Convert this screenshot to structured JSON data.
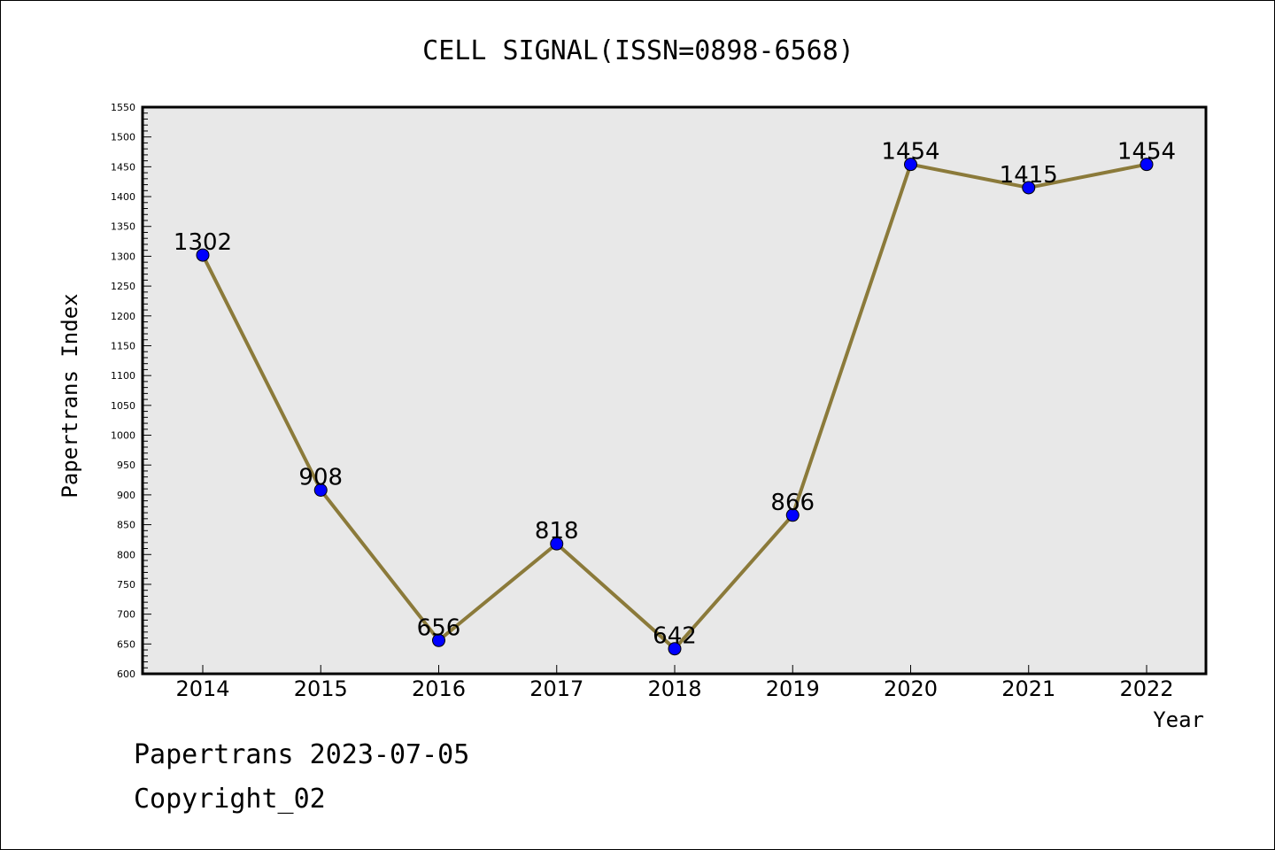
{
  "chart_data": {
    "type": "line",
    "title": "CELL SIGNAL(ISSN=0898-6568)",
    "xlabel": "Year",
    "ylabel": "Papertrans Index",
    "categories": [
      "2014",
      "2015",
      "2016",
      "2017",
      "2018",
      "2019",
      "2020",
      "2021",
      "2022"
    ],
    "series": [
      {
        "values": [
          1302,
          908,
          656,
          818,
          642,
          866,
          1454,
          1415,
          1454
        ]
      }
    ],
    "data_labels": [
      "1302",
      "908",
      "656",
      "818",
      "642",
      "866",
      "1454",
      "1415",
      "1454"
    ],
    "ylim": [
      600,
      1550
    ],
    "y_major_step": 50,
    "y_minor_step": 10,
    "grid": false,
    "legend": "none",
    "colors": {
      "line": "#8B7A3A",
      "marker": "#0000FF",
      "plot_background": "#E8E8E8"
    }
  },
  "footer": {
    "line1": "Papertrans 2023-07-05",
    "line2": "Copyright_02"
  }
}
